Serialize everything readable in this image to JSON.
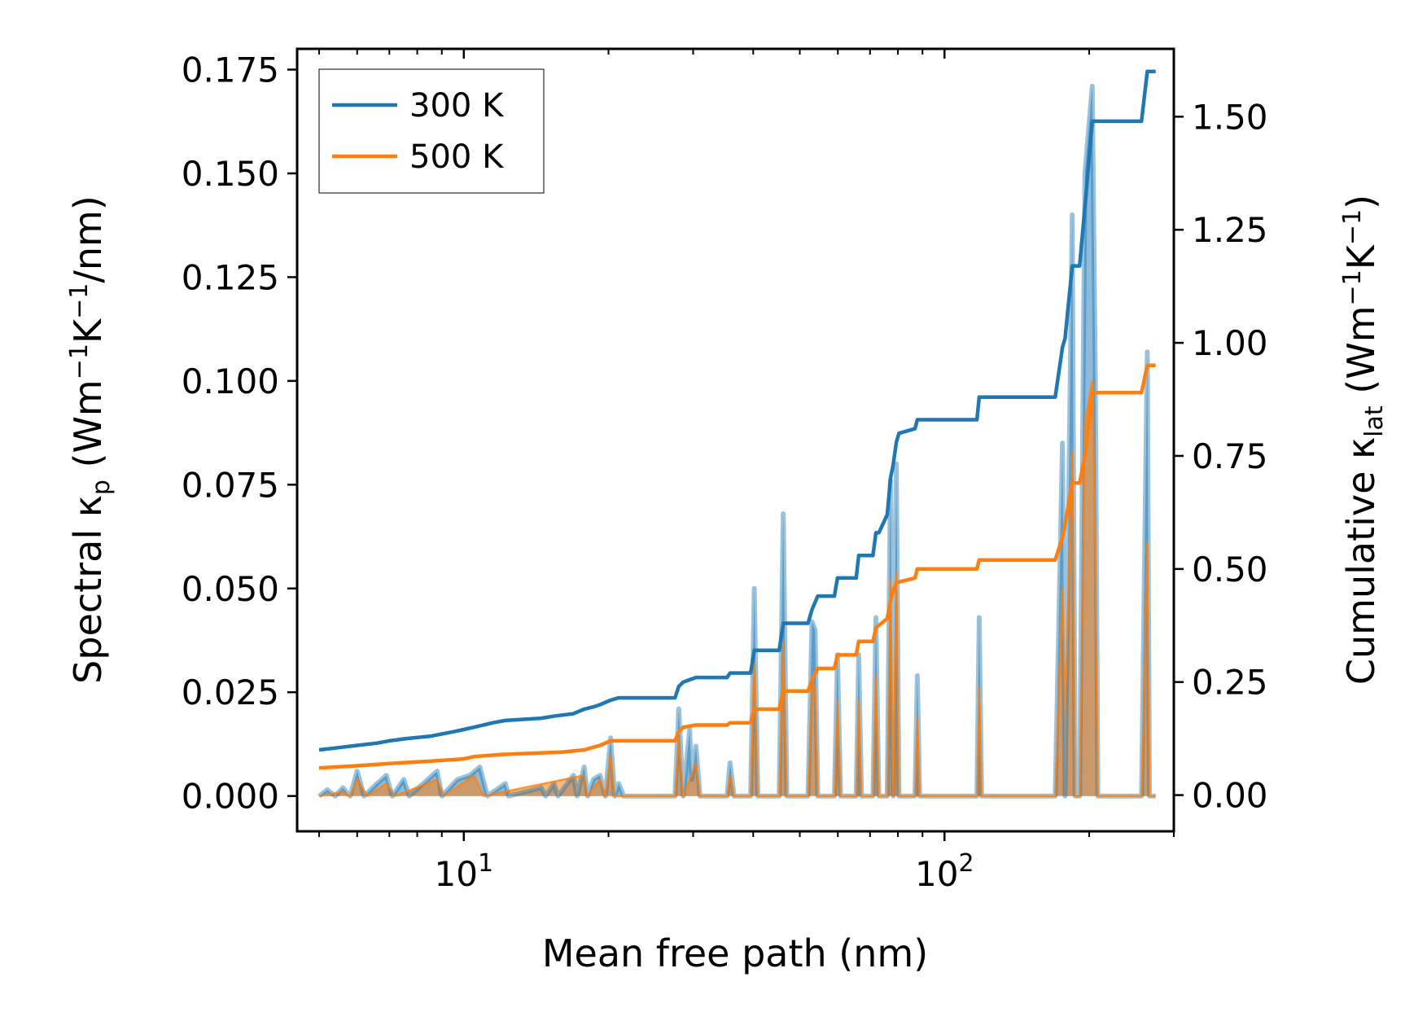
{
  "chart_data": {
    "type": "line",
    "title": "",
    "xlabel": "Mean free path (nm)",
    "ylabel": "Spectral κp (Wm−1K−1/nm)",
    "y2label": "Cumulative κlat (Wm−1K−1)",
    "ylabel_parts": {
      "pre": "Spectral κ",
      "sub": "p",
      "mid1": " (Wm",
      "sup1": "−1",
      "mid2": "K",
      "sup2": "−1",
      "post": "/nm)"
    },
    "y2label_parts": {
      "pre": "Cumulative κ",
      "sub": "lat",
      "mid1": " (Wm",
      "sup1": "−1",
      "mid2": "K",
      "sup2": "−1",
      "post": ")"
    },
    "xscale": "log",
    "xlim": [
      4.5,
      300
    ],
    "ylim": [
      -0.0085,
      0.18
    ],
    "y2lim": [
      -0.08,
      1.65
    ],
    "x_ticks": [
      {
        "value": 10,
        "base": "10",
        "exp": "1"
      },
      {
        "value": 100,
        "base": "10",
        "exp": "2"
      }
    ],
    "y_ticks": [
      "0.000",
      "0.025",
      "0.050",
      "0.075",
      "0.100",
      "0.125",
      "0.150",
      "0.175"
    ],
    "y2_ticks": [
      "0.00",
      "0.25",
      "0.50",
      "0.75",
      "1.00",
      "1.25",
      "1.50"
    ],
    "legend": {
      "position": "upper-left",
      "entries": [
        "300 K",
        "500 K"
      ]
    },
    "colors": {
      "s300": "#1f77b4",
      "s500": "#ff7f0e",
      "fill300": "#1f77b4",
      "fill500": "#ff7f0e"
    },
    "spectral": {
      "300 K": [
        [
          5,
          0
        ],
        [
          5.2,
          0.0015
        ],
        [
          5.4,
          0
        ],
        [
          5.6,
          0.002
        ],
        [
          5.8,
          0
        ],
        [
          6.0,
          0.006
        ],
        [
          6.2,
          0
        ],
        [
          6.6,
          0.003
        ],
        [
          6.9,
          0.005
        ],
        [
          7.1,
          0
        ],
        [
          7.5,
          0.004
        ],
        [
          7.7,
          0
        ],
        [
          8.8,
          0.006
        ],
        [
          9.0,
          0
        ],
        [
          9.7,
          0.004
        ],
        [
          10.3,
          0.005
        ],
        [
          10.8,
          0.007
        ],
        [
          11.2,
          0
        ],
        [
          12.2,
          0.003
        ],
        [
          12.4,
          0
        ],
        [
          14.5,
          0.002
        ],
        [
          14.8,
          0
        ],
        [
          15.4,
          0.003
        ],
        [
          15.7,
          0
        ],
        [
          16.9,
          0.005
        ],
        [
          17.2,
          0
        ],
        [
          17.8,
          0.007
        ],
        [
          18.1,
          0
        ],
        [
          18.6,
          0.004
        ],
        [
          19.2,
          0.005
        ],
        [
          19.7,
          0
        ],
        [
          20.2,
          0.014
        ],
        [
          20.6,
          0
        ],
        [
          21.0,
          0.003
        ],
        [
          21.5,
          0
        ],
        [
          27.5,
          0
        ],
        [
          28.0,
          0.021
        ],
        [
          28.6,
          0
        ],
        [
          29.5,
          0.016
        ],
        [
          29.8,
          0.004
        ],
        [
          30.4,
          0.012
        ],
        [
          31.0,
          0
        ],
        [
          35.3,
          0
        ],
        [
          35.8,
          0.008
        ],
        [
          36.5,
          0
        ],
        [
          39.5,
          0
        ],
        [
          40.2,
          0.05
        ],
        [
          40.9,
          0
        ],
        [
          45.3,
          0
        ],
        [
          46.2,
          0.068
        ],
        [
          47.0,
          0
        ],
        [
          52.0,
          0
        ],
        [
          53.0,
          0.042
        ],
        [
          53.8,
          0.04
        ],
        [
          54.5,
          0
        ],
        [
          59.0,
          0
        ],
        [
          59.9,
          0.034
        ],
        [
          60.8,
          0
        ],
        [
          65.5,
          0
        ],
        [
          66.3,
          0.034
        ],
        [
          67.2,
          0
        ],
        [
          71.0,
          0
        ],
        [
          72.0,
          0.043
        ],
        [
          73.0,
          0
        ],
        [
          76.0,
          0
        ],
        [
          77.2,
          0.076
        ],
        [
          78.2,
          0
        ],
        [
          79.4,
          0.08
        ],
        [
          80.4,
          0
        ],
        [
          86.8,
          0
        ],
        [
          87.8,
          0.029
        ],
        [
          88.8,
          0
        ],
        [
          116.8,
          0
        ],
        [
          118.1,
          0.043
        ],
        [
          119.5,
          0
        ],
        [
          170,
          0
        ],
        [
          176.0,
          0.085
        ],
        [
          178.2,
          0
        ],
        [
          184.4,
          0.14
        ],
        [
          187.0,
          0
        ],
        [
          191.0,
          0
        ],
        [
          196.0,
          0.15
        ],
        [
          203.0,
          0.171
        ],
        [
          206.0,
          0.1
        ],
        [
          208.5,
          0
        ],
        [
          257.0,
          0
        ],
        [
          264.2,
          0.107
        ],
        [
          267.0,
          0
        ],
        [
          275.0,
          0
        ]
      ],
      "500 K": [
        [
          5,
          0
        ],
        [
          5.6,
          0.001
        ],
        [
          5.8,
          0
        ],
        [
          6.0,
          0.004
        ],
        [
          6.3,
          0
        ],
        [
          6.9,
          0.003
        ],
        [
          7.2,
          0
        ],
        [
          8.8,
          0.004
        ],
        [
          9.1,
          0
        ],
        [
          10.5,
          0.005
        ],
        [
          11,
          0
        ],
        [
          17.8,
          0.005
        ],
        [
          18.1,
          0
        ],
        [
          19.2,
          0.004
        ],
        [
          19.7,
          0
        ],
        [
          20.2,
          0.01
        ],
        [
          20.6,
          0
        ],
        [
          27.5,
          0
        ],
        [
          28.0,
          0.014
        ],
        [
          28.6,
          0
        ],
        [
          30.4,
          0.008
        ],
        [
          31.0,
          0
        ],
        [
          35.3,
          0
        ],
        [
          35.8,
          0.005
        ],
        [
          36.5,
          0
        ],
        [
          39.5,
          0
        ],
        [
          40.2,
          0.034
        ],
        [
          40.9,
          0
        ],
        [
          45.3,
          0
        ],
        [
          46.2,
          0.037
        ],
        [
          47.0,
          0
        ],
        [
          52.0,
          0
        ],
        [
          53.0,
          0.028
        ],
        [
          53.8,
          0.026
        ],
        [
          54.5,
          0
        ],
        [
          59.0,
          0
        ],
        [
          59.9,
          0.023
        ],
        [
          60.8,
          0
        ],
        [
          65.5,
          0
        ],
        [
          66.3,
          0.023
        ],
        [
          67.2,
          0
        ],
        [
          71.0,
          0
        ],
        [
          72.0,
          0.029
        ],
        [
          73.0,
          0
        ],
        [
          76.0,
          0
        ],
        [
          77.2,
          0.052
        ],
        [
          78.2,
          0
        ],
        [
          79.4,
          0.054
        ],
        [
          80.4,
          0
        ],
        [
          86.8,
          0
        ],
        [
          87.8,
          0.019
        ],
        [
          88.8,
          0
        ],
        [
          116.8,
          0
        ],
        [
          118.1,
          0.026
        ],
        [
          119.5,
          0
        ],
        [
          170,
          0
        ],
        [
          176.0,
          0.05
        ],
        [
          178.2,
          0.02
        ],
        [
          184.4,
          0.083
        ],
        [
          187.0,
          0
        ],
        [
          191.0,
          0
        ],
        [
          196.0,
          0.09
        ],
        [
          203.0,
          0.1
        ],
        [
          206.0,
          0.06
        ],
        [
          208.5,
          0
        ],
        [
          257.0,
          0
        ],
        [
          264.2,
          0.061
        ],
        [
          267.0,
          0
        ],
        [
          275.0,
          0
        ]
      ]
    },
    "cumulative": {
      "300 K": [
        [
          5,
          0.1
        ],
        [
          5.5,
          0.105
        ],
        [
          6.0,
          0.11
        ],
        [
          6.6,
          0.115
        ],
        [
          7.0,
          0.12
        ],
        [
          7.6,
          0.125
        ],
        [
          8.5,
          0.13
        ],
        [
          9.5,
          0.14
        ],
        [
          10.0,
          0.145
        ],
        [
          10.5,
          0.15
        ],
        [
          11.5,
          0.16
        ],
        [
          12.2,
          0.165
        ],
        [
          14.5,
          0.17
        ],
        [
          15.5,
          0.175
        ],
        [
          16.9,
          0.18
        ],
        [
          17.8,
          0.19
        ],
        [
          18.6,
          0.195
        ],
        [
          19.2,
          0.2
        ],
        [
          20.2,
          0.21
        ],
        [
          21.0,
          0.215
        ],
        [
          27.5,
          0.215
        ],
        [
          28.0,
          0.24
        ],
        [
          28.6,
          0.25
        ],
        [
          29.5,
          0.255
        ],
        [
          30.4,
          0.26
        ],
        [
          31.0,
          0.26
        ],
        [
          35.3,
          0.26
        ],
        [
          35.8,
          0.27
        ],
        [
          39.5,
          0.27
        ],
        [
          40.2,
          0.32
        ],
        [
          40.9,
          0.32
        ],
        [
          45.3,
          0.32
        ],
        [
          46.2,
          0.38
        ],
        [
          47.0,
          0.38
        ],
        [
          52.0,
          0.38
        ],
        [
          53.0,
          0.41
        ],
        [
          54.5,
          0.44
        ],
        [
          59.0,
          0.44
        ],
        [
          59.9,
          0.48
        ],
        [
          60.8,
          0.48
        ],
        [
          65.5,
          0.48
        ],
        [
          66.3,
          0.53
        ],
        [
          67.2,
          0.53
        ],
        [
          71.0,
          0.53
        ],
        [
          72.0,
          0.58
        ],
        [
          73.0,
          0.58
        ],
        [
          76.0,
          0.62
        ],
        [
          77.2,
          0.7
        ],
        [
          78.2,
          0.73
        ],
        [
          79.4,
          0.78
        ],
        [
          80.4,
          0.8
        ],
        [
          86.8,
          0.81
        ],
        [
          87.8,
          0.83
        ],
        [
          88.8,
          0.83
        ],
        [
          116.8,
          0.83
        ],
        [
          118.1,
          0.88
        ],
        [
          119.5,
          0.88
        ],
        [
          170,
          0.88
        ],
        [
          176.0,
          0.99
        ],
        [
          178.2,
          1.01
        ],
        [
          184.4,
          1.17
        ],
        [
          187.0,
          1.17
        ],
        [
          191.0,
          1.17
        ],
        [
          196.0,
          1.3
        ],
        [
          203.0,
          1.49
        ],
        [
          206.0,
          1.49
        ],
        [
          208.5,
          1.49
        ],
        [
          257.0,
          1.49
        ],
        [
          264.2,
          1.6
        ],
        [
          275.0,
          1.6
        ]
      ],
      "500 K": [
        [
          5,
          0.06
        ],
        [
          6.0,
          0.065
        ],
        [
          7.0,
          0.07
        ],
        [
          8.5,
          0.075
        ],
        [
          10.0,
          0.08
        ],
        [
          10.5,
          0.085
        ],
        [
          12.0,
          0.09
        ],
        [
          16.0,
          0.095
        ],
        [
          17.8,
          0.1
        ],
        [
          19.2,
          0.11
        ],
        [
          20.2,
          0.12
        ],
        [
          21.0,
          0.12
        ],
        [
          27.5,
          0.12
        ],
        [
          28.0,
          0.14
        ],
        [
          28.6,
          0.15
        ],
        [
          30.4,
          0.155
        ],
        [
          35.3,
          0.155
        ],
        [
          35.8,
          0.16
        ],
        [
          39.5,
          0.16
        ],
        [
          40.2,
          0.19
        ],
        [
          45.3,
          0.19
        ],
        [
          46.2,
          0.23
        ],
        [
          52.0,
          0.23
        ],
        [
          53.0,
          0.255
        ],
        [
          54.5,
          0.28
        ],
        [
          59.0,
          0.28
        ],
        [
          59.9,
          0.31
        ],
        [
          65.5,
          0.31
        ],
        [
          66.3,
          0.34
        ],
        [
          71.0,
          0.34
        ],
        [
          72.0,
          0.37
        ],
        [
          76.0,
          0.39
        ],
        [
          77.2,
          0.43
        ],
        [
          78.2,
          0.45
        ],
        [
          79.4,
          0.47
        ],
        [
          86.8,
          0.48
        ],
        [
          87.8,
          0.5
        ],
        [
          116.8,
          0.5
        ],
        [
          118.1,
          0.52
        ],
        [
          170,
          0.52
        ],
        [
          176.0,
          0.57
        ],
        [
          178.2,
          0.6
        ],
        [
          184.4,
          0.69
        ],
        [
          191.0,
          0.69
        ],
        [
          196.0,
          0.75
        ],
        [
          203.0,
          0.89
        ],
        [
          206.0,
          0.89
        ],
        [
          257.0,
          0.89
        ],
        [
          264.2,
          0.95
        ],
        [
          275.0,
          0.95
        ]
      ]
    }
  }
}
